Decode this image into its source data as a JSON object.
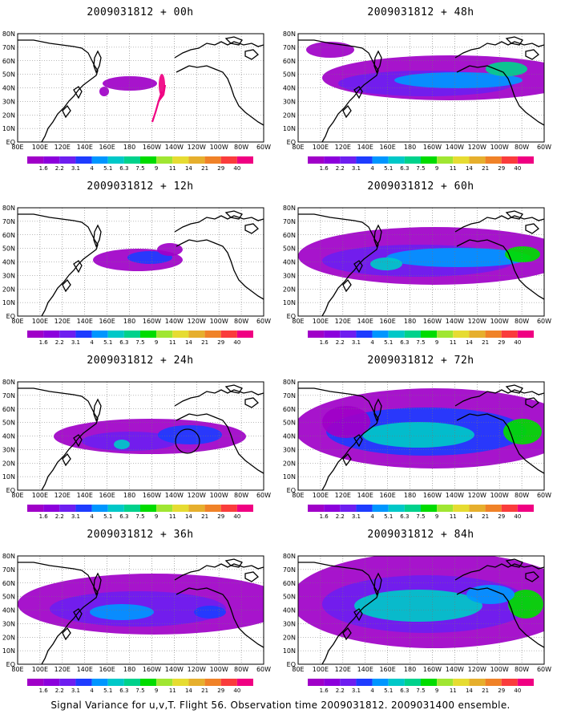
{
  "panels": [
    {
      "title": "2009031812 + 00h"
    },
    {
      "title": "2009031812 + 48h"
    },
    {
      "title": "2009031812 + 12h"
    },
    {
      "title": "2009031812 + 60h"
    },
    {
      "title": "2009031812 + 24h"
    },
    {
      "title": "2009031812 + 72h"
    },
    {
      "title": "2009031812 + 36h"
    },
    {
      "title": "2009031812 + 84h"
    }
  ],
  "axes": {
    "lat_labels": [
      "80N",
      "70N",
      "60N",
      "50N",
      "40N",
      "30N",
      "20N",
      "10N",
      "EQ"
    ],
    "lon_labels": [
      "80E",
      "100E",
      "120E",
      "140E",
      "160E",
      "180",
      "160W",
      "140W",
      "120W",
      "100W",
      "80W",
      "60W"
    ]
  },
  "colorbar": {
    "labels": [
      "1.6",
      "2.2",
      "3.1",
      "4",
      "5.1",
      "6.3",
      "7.5",
      "9",
      "11",
      "14",
      "21",
      "29",
      "40"
    ],
    "colors": [
      "#a000c8",
      "#8c00dc",
      "#6e1ef0",
      "#1e3cff",
      "#0096ff",
      "#00c8c8",
      "#00d28c",
      "#00dc00",
      "#a0e632",
      "#e6dc32",
      "#e6af2d",
      "#f08228",
      "#fa3c3c",
      "#f00082"
    ]
  },
  "caption": "Signal Variance for u,v,T. Flight 56. Observation time 2009031812. 2009031400 ensemble."
}
